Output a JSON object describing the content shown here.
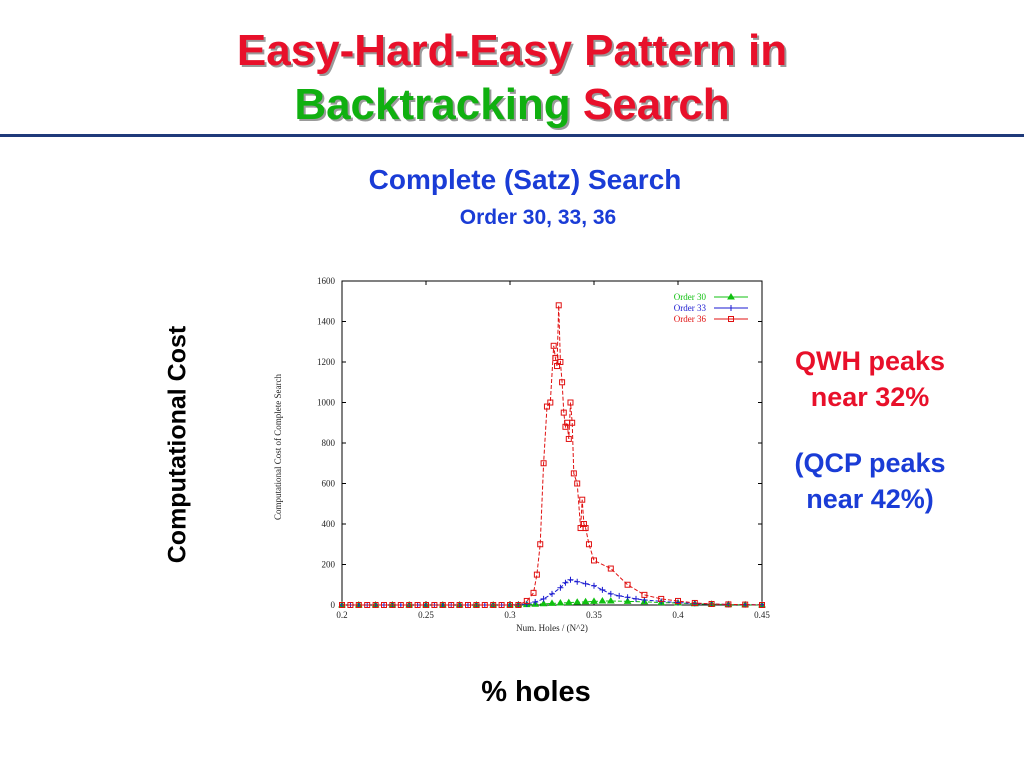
{
  "slide": {
    "title_line1": "Easy-Hard-Easy Pattern in",
    "title_line2_a": "Backtracking",
    "title_line2_b": "Search",
    "subtitle": "Complete (Satz) Search",
    "subtitle2": "Order 30, 33, 36",
    "y_label": "Computational Cost",
    "x_label": "% holes",
    "note1_line1": "QWH peaks",
    "note1_line2": "near 32%",
    "note2_line1": "(QCP peaks",
    "note2_line2": "near 42%)",
    "colors": {
      "title_red": "#e8102a",
      "title_green": "#10b010",
      "blue": "#1a3cd6",
      "rule": "#1f3a7a"
    }
  },
  "chart_data": {
    "type": "line",
    "xlabel": "Num. Holes / (N^2)",
    "ylabel": "Computational Cost of Complete Search",
    "xlim": [
      0.2,
      0.45
    ],
    "ylim": [
      0,
      1600
    ],
    "xticks": [
      0.2,
      0.25,
      0.3,
      0.35,
      0.4,
      0.45
    ],
    "xtick_labels": [
      "0.2",
      "0.25",
      "0.3",
      "0.35",
      "0.4",
      "0.45"
    ],
    "yticks": [
      0,
      200,
      400,
      600,
      800,
      1000,
      1200,
      1400,
      1600
    ],
    "ytick_labels": [
      "0",
      "200",
      "400",
      "600",
      "800",
      "1000",
      "1200",
      "1400",
      "1600"
    ],
    "grid": false,
    "legend_position": "top-right",
    "series": [
      {
        "name": "Order 30",
        "color": "#10c010",
        "marker": "triangle",
        "x": [
          0.2,
          0.21,
          0.22,
          0.23,
          0.24,
          0.25,
          0.26,
          0.27,
          0.28,
          0.29,
          0.3,
          0.305,
          0.31,
          0.315,
          0.32,
          0.325,
          0.33,
          0.335,
          0.34,
          0.345,
          0.35,
          0.355,
          0.36,
          0.37,
          0.38,
          0.39,
          0.4,
          0.41,
          0.42,
          0.43,
          0.44,
          0.45
        ],
        "y": [
          0,
          0,
          0,
          0,
          0,
          0,
          0,
          0,
          0,
          0,
          0,
          1,
          2,
          4,
          6,
          8,
          10,
          12,
          14,
          16,
          18,
          20,
          20,
          18,
          16,
          12,
          10,
          6,
          4,
          2,
          1,
          0
        ]
      },
      {
        "name": "Order 33",
        "color": "#1a1ad0",
        "marker": "plus",
        "x": [
          0.2,
          0.205,
          0.21,
          0.215,
          0.22,
          0.225,
          0.23,
          0.235,
          0.24,
          0.245,
          0.25,
          0.255,
          0.26,
          0.265,
          0.27,
          0.275,
          0.28,
          0.285,
          0.29,
          0.295,
          0.3,
          0.305,
          0.31,
          0.315,
          0.32,
          0.325,
          0.33,
          0.333,
          0.336,
          0.34,
          0.345,
          0.35,
          0.355,
          0.36,
          0.365,
          0.37,
          0.375,
          0.38,
          0.39,
          0.4,
          0.41,
          0.42,
          0.43,
          0.44,
          0.45
        ],
        "y": [
          0,
          0,
          0,
          0,
          0,
          0,
          0,
          0,
          0,
          0,
          0,
          0,
          0,
          0,
          0,
          0,
          0,
          0,
          0,
          0,
          0,
          2,
          5,
          15,
          30,
          55,
          85,
          110,
          125,
          115,
          105,
          95,
          75,
          55,
          45,
          38,
          30,
          25,
          18,
          12,
          8,
          5,
          3,
          2,
          1
        ]
      },
      {
        "name": "Order 36",
        "color": "#e01010",
        "marker": "square",
        "x": [
          0.2,
          0.205,
          0.21,
          0.215,
          0.22,
          0.225,
          0.23,
          0.235,
          0.24,
          0.245,
          0.25,
          0.255,
          0.26,
          0.265,
          0.27,
          0.275,
          0.28,
          0.285,
          0.29,
          0.295,
          0.3,
          0.305,
          0.31,
          0.314,
          0.316,
          0.318,
          0.32,
          0.322,
          0.324,
          0.326,
          0.327,
          0.328,
          0.329,
          0.33,
          0.331,
          0.332,
          0.333,
          0.334,
          0.335,
          0.336,
          0.337,
          0.338,
          0.34,
          0.342,
          0.343,
          0.344,
          0.345,
          0.347,
          0.35,
          0.36,
          0.37,
          0.38,
          0.39,
          0.4,
          0.41,
          0.42,
          0.43,
          0.44,
          0.45
        ],
        "y": [
          0,
          0,
          0,
          0,
          0,
          0,
          0,
          0,
          0,
          0,
          0,
          0,
          0,
          0,
          0,
          0,
          0,
          0,
          0,
          0,
          0,
          0,
          20,
          60,
          150,
          300,
          700,
          980,
          1000,
          1280,
          1220,
          1180,
          1480,
          1200,
          1100,
          950,
          880,
          900,
          820,
          1000,
          900,
          650,
          600,
          380,
          520,
          400,
          380,
          300,
          220,
          180,
          100,
          50,
          30,
          20,
          10,
          5,
          3,
          2,
          0
        ]
      }
    ]
  }
}
